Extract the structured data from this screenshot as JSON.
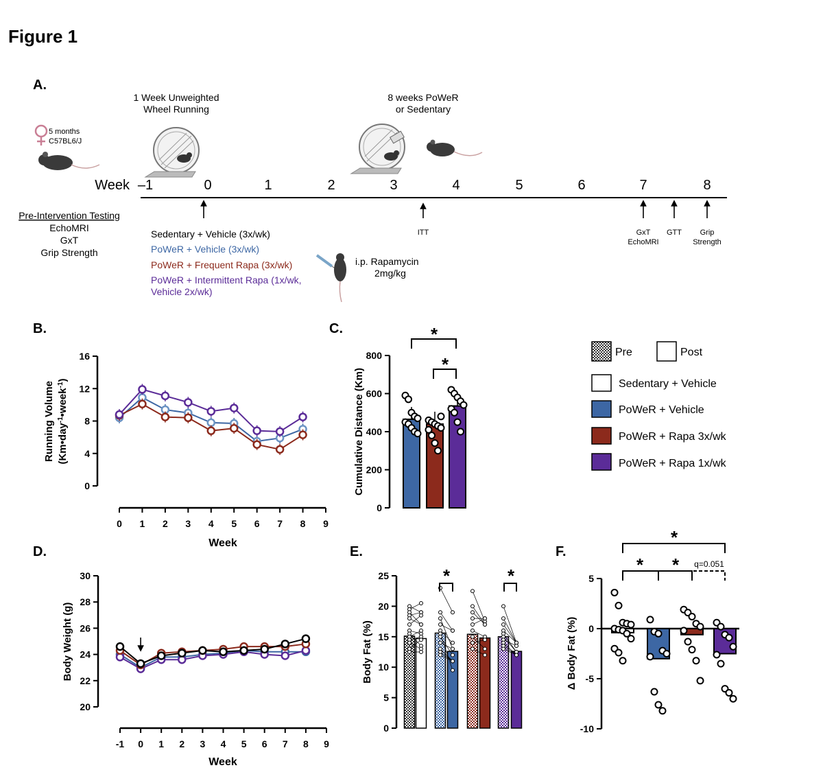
{
  "figure": {
    "title": "Figure 1"
  },
  "colors": {
    "sedentary": "#ffffff",
    "vehicle": "#3d67a4",
    "rapa3x": "#8c2a1c",
    "rapa1x": "#5b2c98",
    "vehicle_marker": "#6b93c3",
    "axis": "#000000"
  },
  "panelA": {
    "label": "A.",
    "wheel1_title": [
      "1 Week Unweighted",
      "Wheel Running"
    ],
    "wheel2_title": [
      "8 weeks PoWeR",
      "or Sedentary"
    ],
    "mouse_info": [
      "5 months",
      "C57BL6/J"
    ],
    "timeline_label": "Week",
    "weeks": [
      "-1",
      "0",
      "1",
      "2",
      "3",
      "4",
      "5",
      "6",
      "7",
      "8"
    ],
    "pre_testing": {
      "heading": "Pre-Intervention Testing",
      "items": [
        "EchoMRI",
        "GxT",
        "Grip Strength"
      ]
    },
    "groups": [
      {
        "text": "Sedentary + Vehicle (3x/wk)",
        "color": "#000000"
      },
      {
        "text": "PoWeR + Vehicle (3x/wk)",
        "color": "#3d67a4"
      },
      {
        "text": "PoWeR + Frequent Rapa (3x/wk)",
        "color": "#8c2a1c"
      },
      {
        "text": "PoWeR + Intermittent Rapa (1x/wk,",
        "color": "#5b2c98"
      },
      {
        "text": "Vehicle 2x/wk)",
        "color": "#5b2c98"
      }
    ],
    "rapamycin": [
      "i.p. Rapamycin",
      "2mg/kg"
    ],
    "itt": "ITT",
    "gxt_echo": [
      "GxT",
      "EchoMRI"
    ],
    "gtt": "GTT",
    "grip": [
      "Grip",
      "Strength"
    ]
  },
  "legend": {
    "pre": "Pre",
    "post": "Post",
    "groups": [
      "Sedentary + Vehicle",
      "PoWeR + Vehicle",
      "PoWeR + Rapa 3x/wk",
      "PoWeR + Rapa 1x/wk"
    ]
  },
  "chart_data": [
    {
      "panel": "B.",
      "type": "line",
      "xlabel": "Week",
      "ylabel": [
        "Running Volume",
        "(Km•day",
        "-1",
        "•week",
        "-1",
        ")"
      ],
      "xlim": [
        0,
        9
      ],
      "ylim": [
        0,
        16
      ],
      "xticks": [
        0,
        1,
        2,
        3,
        4,
        5,
        6,
        7,
        8,
        9
      ],
      "yticks": [
        0,
        4,
        8,
        12,
        16
      ],
      "x": [
        0,
        1,
        2,
        3,
        4,
        5,
        6,
        7,
        8
      ],
      "series": [
        {
          "name": "PoWeR + Vehicle",
          "values": [
            8.4,
            10.9,
            9.4,
            9.0,
            7.8,
            7.7,
            5.5,
            5.9,
            7.0
          ]
        },
        {
          "name": "PoWeR + Rapa 3x/wk",
          "values": [
            8.7,
            10.1,
            8.5,
            8.4,
            6.8,
            7.1,
            5.1,
            4.5,
            6.3
          ]
        },
        {
          "name": "PoWeR + Rapa 1x/wk",
          "values": [
            8.8,
            11.9,
            11.1,
            10.3,
            9.2,
            9.6,
            6.8,
            6.7,
            8.5
          ]
        }
      ]
    },
    {
      "panel": "C.",
      "type": "bar",
      "ylabel": "Cumulative Distance (Km)",
      "ylim": [
        0,
        800
      ],
      "yticks": [
        0,
        200,
        400,
        600,
        800
      ],
      "categories": [
        "PoWeR + Vehicle",
        "PoWeR + Rapa 3x/wk",
        "PoWeR + Rapa 1x/wk"
      ],
      "values": [
        465,
        440,
        535
      ],
      "points": [
        [
          590,
          570,
          500,
          480,
          470,
          450,
          440,
          420,
          400,
          390
        ],
        [
          460,
          450,
          440,
          430,
          420,
          410,
          380,
          340,
          300,
          480
        ],
        [
          620,
          600,
          580,
          560,
          540,
          520,
          500,
          450,
          400
        ]
      ],
      "sig": [
        "*",
        "*"
      ]
    },
    {
      "panel": "D.",
      "type": "line",
      "xlabel": "Week",
      "ylabel": "Body Weight (g)",
      "xlim": [
        -1,
        9
      ],
      "ylim": [
        20,
        30
      ],
      "xticks": [
        -1,
        0,
        1,
        2,
        3,
        4,
        5,
        6,
        7,
        8,
        9
      ],
      "yticks": [
        20,
        22,
        24,
        26,
        28,
        30
      ],
      "x": [
        -1,
        0,
        1,
        2,
        3,
        4,
        5,
        6,
        7,
        8
      ],
      "series": [
        {
          "name": "Sedentary + Vehicle",
          "values": [
            24.6,
            23.3,
            23.9,
            24.1,
            24.3,
            24.2,
            24.3,
            24.4,
            24.8,
            25.2
          ]
        },
        {
          "name": "PoWeR + Vehicle",
          "values": [
            24.0,
            23.0,
            23.8,
            23.8,
            24.0,
            24.1,
            24.3,
            24.2,
            24.2,
            24.2
          ]
        },
        {
          "name": "PoWeR + Rapa 3x/wk",
          "values": [
            24.3,
            23.2,
            24.1,
            24.2,
            24.3,
            24.4,
            24.6,
            24.6,
            24.6,
            24.8
          ]
        },
        {
          "name": "PoWeR + Rapa 1x/wk",
          "values": [
            23.8,
            22.9,
            23.6,
            23.6,
            23.9,
            24.0,
            24.2,
            24.0,
            23.9,
            24.3
          ]
        }
      ]
    },
    {
      "panel": "E.",
      "type": "bar",
      "ylabel": "Body Fat (%)",
      "ylim": [
        0,
        25
      ],
      "yticks": [
        0,
        5,
        10,
        15,
        20,
        25
      ],
      "categories": [
        "Sedentary + Vehicle",
        "PoWeR + Vehicle",
        "PoWeR + Rapa 3x/wk",
        "PoWeR + Rapa 1x/wk"
      ],
      "series": [
        {
          "name": "Pre",
          "values": [
            15.1,
            15.6,
            15.4,
            15.0
          ]
        },
        {
          "name": "Post",
          "values": [
            14.7,
            12.6,
            14.8,
            12.6
          ]
        }
      ],
      "sig": [
        "*",
        "*"
      ]
    },
    {
      "panel": "F.",
      "type": "bar",
      "ylabel": "Δ Body Fat (%)",
      "ylim": [
        -10,
        5
      ],
      "yticks": [
        -10,
        -5,
        0,
        5
      ],
      "categories": [
        "Sedentary + Vehicle",
        "PoWeR + Vehicle",
        "PoWeR + Rapa 3x/wk",
        "PoWeR + Rapa 1x/wk"
      ],
      "values": [
        -0.4,
        -3.0,
        -0.6,
        -2.5
      ],
      "points": [
        [
          3.6,
          2.3,
          0.6,
          0.5,
          0.4,
          0,
          -0.1,
          -0.2,
          -0.5,
          -1.0,
          -2.0,
          -2.4,
          -3.2
        ],
        [
          0.9,
          -0.3,
          -0.5,
          -2.2,
          -2.5,
          -2.8,
          -6.3,
          -7.6,
          -8.2
        ],
        [
          1.9,
          1.6,
          1.2,
          0.5,
          0.2,
          -0.2,
          -1.3,
          -2.1,
          -3.2,
          -5.2
        ],
        [
          0.6,
          0.2,
          -0.6,
          -0.9,
          -1.8,
          -2.6,
          -3.5,
          -6.0,
          -6.4,
          -7.0
        ]
      ],
      "sig": [
        "*",
        "*",
        "*",
        "q=0.051"
      ]
    }
  ]
}
